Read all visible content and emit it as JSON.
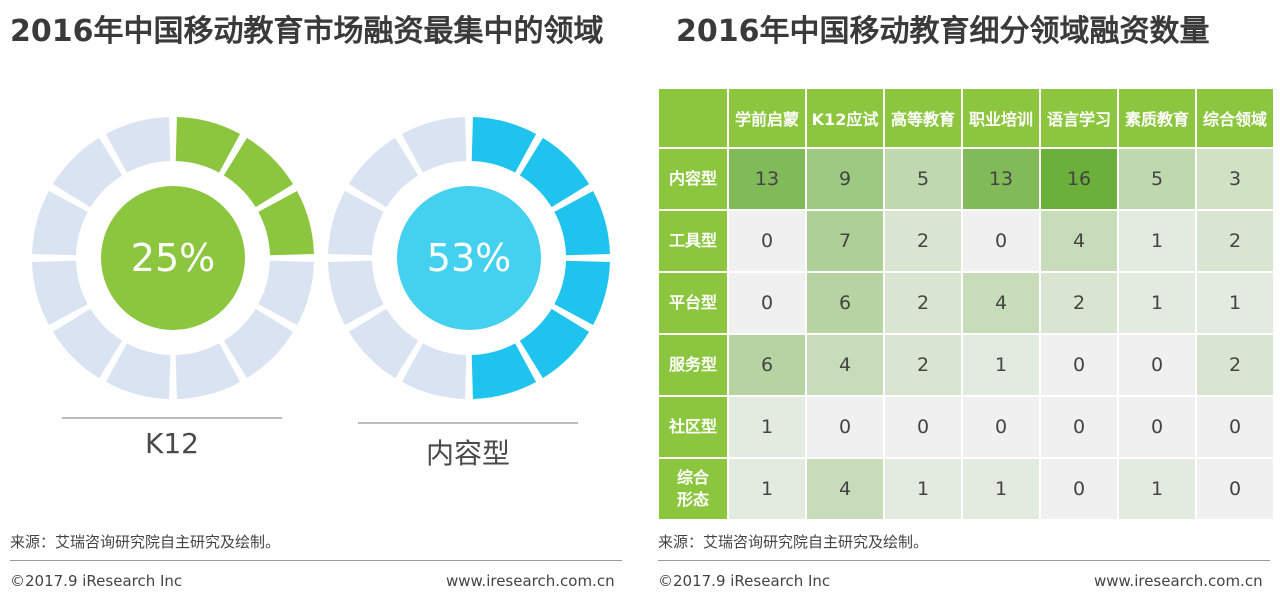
{
  "left_title": "2016年中国移动教育市场融资最集中的领域",
  "right_title": "2016年中国移动教育细分领域融资数量",
  "colors": {
    "green": "#8cc63f",
    "blue": "#1ec4ee",
    "ring_bg": "#d9e3f1",
    "center_blue": "#44d0ef"
  },
  "chart_data": [
    {
      "type": "pie",
      "title": "2016年中国移动教育市场融资最集中的领域",
      "charts": [
        {
          "label": "K12",
          "value_text": "25%",
          "value": 25,
          "color": "#8cc63f"
        },
        {
          "label": "内容型",
          "value_text": "53%",
          "value": 53,
          "color": "#1ec4ee"
        }
      ]
    },
    {
      "type": "heatmap",
      "title": "2016年中国移动教育细分领域融资数量",
      "columns": [
        "学前启蒙",
        "K12应试",
        "高等教育",
        "职业培训",
        "语言学习",
        "素质教育",
        "综合领域"
      ],
      "rows": [
        {
          "label": "内容型",
          "values": [
            13,
            9,
            5,
            13,
            16,
            5,
            3
          ]
        },
        {
          "label": "工具型",
          "values": [
            0,
            7,
            2,
            0,
            4,
            1,
            2
          ]
        },
        {
          "label": "平台型",
          "values": [
            0,
            6,
            2,
            4,
            2,
            1,
            1
          ]
        },
        {
          "label": "服务型",
          "values": [
            6,
            4,
            2,
            1,
            0,
            0,
            2
          ]
        },
        {
          "label": "社区型",
          "values": [
            1,
            0,
            0,
            0,
            0,
            0,
            0
          ]
        },
        {
          "label": "综合\n形态",
          "values": [
            1,
            4,
            1,
            1,
            0,
            1,
            0
          ]
        }
      ]
    }
  ],
  "footer": {
    "source": "来源：艾瑞咨询研究院自主研究及绘制。",
    "copyright": "©2017.9 iResearch Inc",
    "site": "www.iresearch.com.cn"
  }
}
